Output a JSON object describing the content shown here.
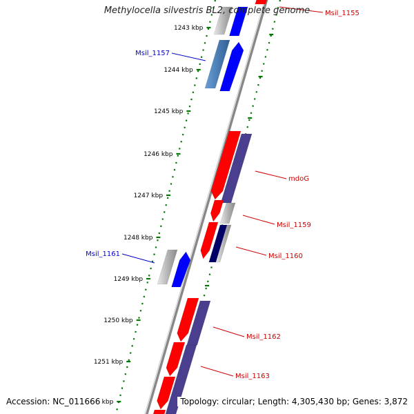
{
  "title": "Methylocella silvestris BL2, complete genome",
  "footer": {
    "accession": "Accession: NC_011666",
    "info": "Topology: circular; Length: 4,305,430 bp; Genes: 3,872"
  },
  "colors": {
    "strand_forward": "#0000ff",
    "strand_reverse": "#ff0000",
    "cog_forward": "#4a7fb5",
    "cog_reverse": "#4a3f8f",
    "gray": "#b8b8b8",
    "navy": "#000066",
    "ruler_dots": "#007700",
    "label_forward": "#0000cc",
    "label_reverse": "#cc0000"
  },
  "ticks": [
    "1243 kbp",
    "1244 kbp",
    "1245 kbp",
    "1246 kbp",
    "1247 kbp",
    "1248 kbp",
    "1249 kbp",
    "1250 kbp",
    "1251 kbp",
    "kbp"
  ],
  "genes": [
    {
      "label": "Msil_1155",
      "strand": "reverse"
    },
    {
      "label": "Msil_1157",
      "strand": "forward"
    },
    {
      "label": "mdoG",
      "strand": "reverse"
    },
    {
      "label": "Msil_1159",
      "strand": "reverse"
    },
    {
      "label": "Msil_1160",
      "strand": "reverse"
    },
    {
      "label": "Msil_1161",
      "strand": "forward"
    },
    {
      "label": "Msil_1162",
      "strand": "reverse"
    },
    {
      "label": "Msil_1163",
      "strand": "reverse"
    }
  ]
}
